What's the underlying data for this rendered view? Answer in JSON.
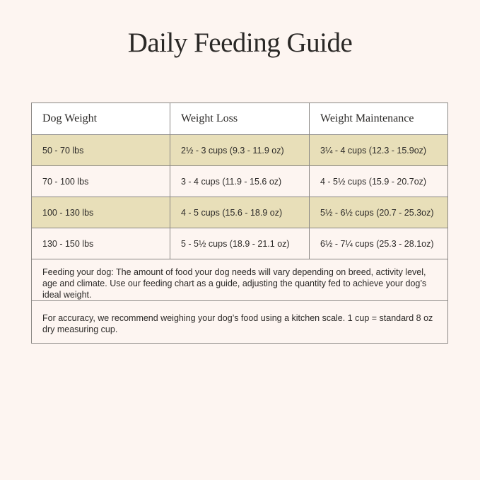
{
  "title": "Daily Feeding Guide",
  "colors": {
    "background": "#fdf5f1",
    "highlight_row": "#e8dfb9",
    "header_row": "#ffffff",
    "border": "#8a8784"
  },
  "table": {
    "headers": [
      "Dog Weight",
      "Weight Loss",
      "Weight Maintenance"
    ],
    "rows": [
      [
        "50 - 70 lbs",
        "2½ - 3 cups (9.3 - 11.9 oz)",
        "3¼ - 4 cups (12.3 - 15.9oz)"
      ],
      [
        "70 - 100 lbs",
        "3 - 4 cups (11.9 - 15.6 oz)",
        "4 - 5½ cups (15.9 - 20.7oz)"
      ],
      [
        "100 - 130 lbs",
        "4 - 5 cups (15.6 - 18.9 oz)",
        "5½ - 6½ cups (20.7 - 25.3oz)"
      ],
      [
        "130 - 150 lbs",
        "5 - 5½ cups (18.9 - 21.1 oz)",
        "6½ - 7¼ cups (25.3 - 28.1oz)"
      ]
    ],
    "notes": [
      "Feeding your dog: The amount of food your dog needs will vary depending on breed, activity level, age and climate. Use our feeding chart as a guide, adjusting the quantity fed to achieve your dog’s ideal weight.",
      "For accuracy, we recommend weighing your dog’s food using a kitchen scale. 1 cup = standard 8 oz dry measuring cup."
    ]
  }
}
